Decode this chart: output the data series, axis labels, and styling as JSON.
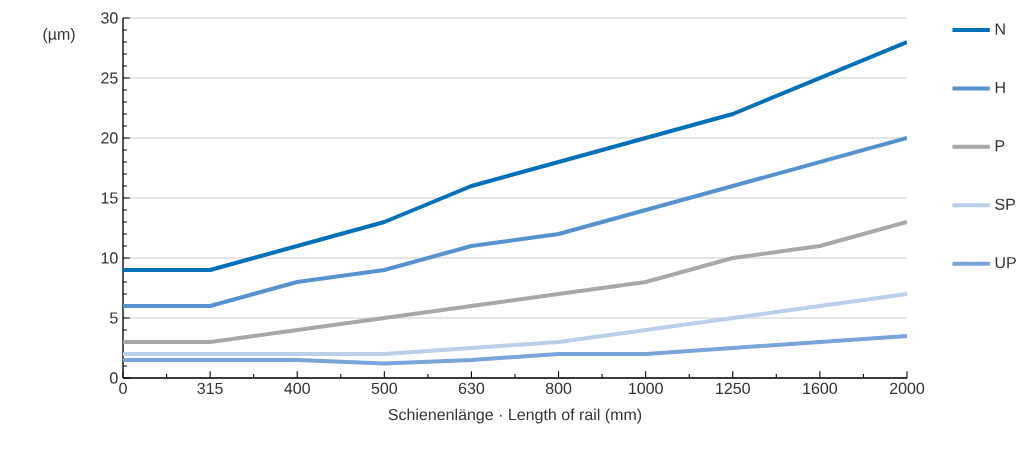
{
  "chart_data": {
    "type": "line",
    "ylabel": "(µm)",
    "xlabel": "Schienenlänge · Length of rail (mm)",
    "categories": [
      "0",
      "315",
      "400",
      "500",
      "630",
      "800",
      "1000",
      "1250",
      "1600",
      "2000"
    ],
    "ylim": [
      0,
      30
    ],
    "yticks": [
      0,
      5,
      10,
      15,
      20,
      25,
      30
    ],
    "grid": "y",
    "legend": "right",
    "line_style": "solid",
    "series": [
      {
        "name": "N",
        "color": "#0070b8",
        "values": [
          9,
          9,
          11,
          13,
          16,
          18,
          20,
          22,
          25,
          28
        ]
      },
      {
        "name": "H",
        "color": "#5593d0",
        "values": [
          6,
          6,
          8,
          9,
          11,
          12,
          14,
          16,
          18,
          20
        ]
      },
      {
        "name": "P",
        "color": "#a7a8ab",
        "values": [
          3,
          3,
          4,
          5,
          6,
          7,
          8,
          10,
          11,
          13
        ]
      },
      {
        "name": "SP",
        "color": "#b9cfea",
        "values": [
          2,
          2,
          2,
          2,
          2.5,
          3,
          4,
          5,
          6,
          7
        ]
      },
      {
        "name": "UP",
        "color": "#78a4da",
        "values": [
          1.5,
          1.5,
          1.5,
          1.2,
          1.5,
          2,
          2,
          2.5,
          3,
          3.5
        ]
      }
    ]
  }
}
